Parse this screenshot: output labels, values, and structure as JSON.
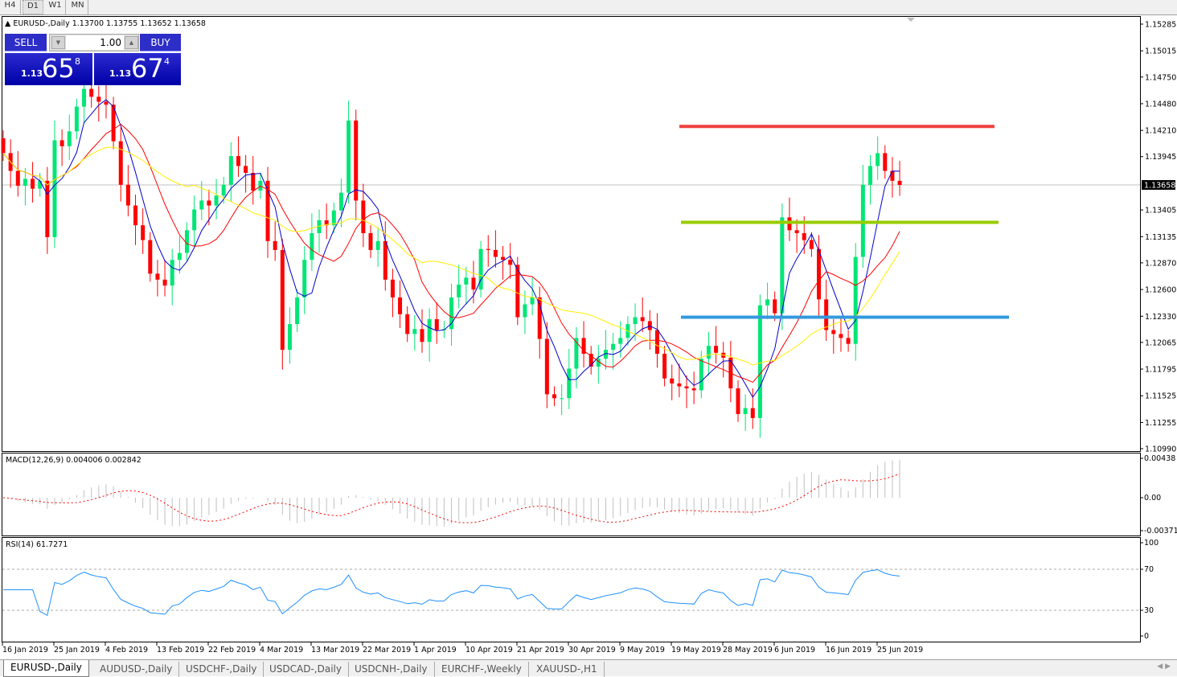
{
  "timeframes": [
    "H4",
    "D1",
    "W1",
    "MN"
  ],
  "active_timeframe": "D1",
  "chart": {
    "title": "EURUSD-,Daily",
    "ohlc_text": "1.13700 1.13755 1.13652 1.13658",
    "current_price": "1.13658",
    "price_ticks": [
      "1.15285",
      "1.15015",
      "1.14750",
      "1.14480",
      "1.14210",
      "1.13945",
      "1.13405",
      "1.13135",
      "1.12870",
      "1.12600",
      "1.12330",
      "1.12065",
      "1.11795",
      "1.11525",
      "1.11255",
      "1.10990"
    ],
    "price_range": [
      1.1099,
      1.15285
    ],
    "date_labels": [
      "16 Jan 2019",
      "25 Jan 2019",
      "4 Feb 2019",
      "13 Feb 2019",
      "22 Feb 2019",
      "4 Mar 2019",
      "13 Mar 2019",
      "22 Mar 2019",
      "1 Apr 2019",
      "10 Apr 2019",
      "21 Apr 2019",
      "30 Apr 2019",
      "9 May 2019",
      "19 May 2019",
      "28 May 2019",
      "6 Jun 2019",
      "16 Jun 2019",
      "25 Jun 2019"
    ],
    "closes": [
      1.1398,
      1.138,
      1.1365,
      1.1372,
      1.1362,
      1.137,
      1.1313,
      1.1411,
      1.1405,
      1.142,
      1.1445,
      1.1463,
      1.1455,
      1.145,
      1.1447,
      1.141,
      1.1366,
      1.1345,
      1.1325,
      1.131,
      1.1276,
      1.127,
      1.1264,
      1.129,
      1.1297,
      1.132,
      1.1341,
      1.135,
      1.1345,
      1.1355,
      1.1366,
      1.1395,
      1.1385,
      1.1378,
      1.136,
      1.137,
      1.1309,
      1.13,
      1.1199,
      1.1225,
      1.1252,
      1.129,
      1.1317,
      1.133,
      1.1325,
      1.134,
      1.1358,
      1.1431,
      1.135,
      1.1317,
      1.13,
      1.1309,
      1.127,
      1.1252,
      1.1235,
      1.1215,
      1.122,
      1.1207,
      1.123,
      1.1219,
      1.122,
      1.1252,
      1.1265,
      1.1272,
      1.126,
      1.1301,
      1.13,
      1.1293,
      1.129,
      1.1285,
      1.1232,
      1.1245,
      1.1252,
      1.121,
      1.1154,
      1.115,
      1.115,
      1.118,
      1.1211,
      1.1195,
      1.1182,
      1.119,
      1.1199,
      1.1205,
      1.1211,
      1.1225,
      1.1232,
      1.1228,
      1.1219,
      1.1195,
      1.117,
      1.1165,
      1.1162,
      1.116,
      1.1158,
      1.119,
      1.1203,
      1.1196,
      1.1191,
      1.116,
      1.1134,
      1.114,
      1.113,
      1.1244,
      1.125,
      1.1236,
      1.1333,
      1.132,
      1.1317,
      1.131,
      1.1301,
      1.125,
      1.1219,
      1.1215,
      1.1211,
      1.1205,
      1.1293,
      1.1366,
      1.1385,
      1.1398,
      1.138,
      1.137,
      1.13658
    ],
    "bull_color": "#00e676",
    "bear_color": "#ff0000",
    "moving_averages": [
      {
        "period": 5,
        "color": "#0000cc"
      },
      {
        "period": 10,
        "color": "#ff0000"
      },
      {
        "period": 20,
        "color": "#ffee00"
      }
    ],
    "levels": [
      {
        "price": 1.1425,
        "color": "#f04040"
      },
      {
        "price": 1.1328,
        "color": "#99cc00"
      },
      {
        "price": 1.1232,
        "color": "#3399dd"
      }
    ]
  },
  "macd": {
    "label": "MACD(12,26,9) 0.004006 0.002842",
    "ticks": [
      "0.00438",
      "0.00",
      "-0.003711"
    ]
  },
  "rsi": {
    "label": "RSI(14) 61.7271",
    "ticks": [
      "100",
      "70",
      "30",
      "0"
    ]
  },
  "trade_panel": {
    "sell_label": "SELL",
    "buy_label": "BUY",
    "lot": "1.00",
    "sell_prefix": "1.13",
    "sell_big": "65",
    "sell_sup": "8",
    "buy_prefix": "1.13",
    "buy_big": "67",
    "buy_sup": "4"
  },
  "symbol_tabs": [
    "EURUSD-,Daily",
    "AUDUSD-,Daily",
    "USDCHF-,Daily",
    "USDCAD-,Daily",
    "USDCNH-,Daily",
    "EURCHF-,Weekly",
    "XAUUSD-,H1"
  ]
}
